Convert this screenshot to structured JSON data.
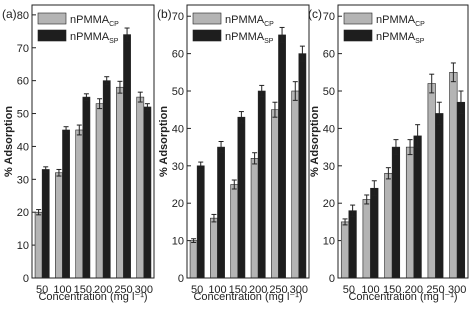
{
  "chart_data": [
    {
      "type": "bar",
      "panel_label": "(a)",
      "y_label": "% Adsorption",
      "x_label": "Concentration (mg l⁻¹)",
      "categories": [
        "50",
        "100",
        "150",
        "200",
        "250",
        "300"
      ],
      "series": [
        {
          "name": "nPMMA",
          "subscript": "CP",
          "color": "#b4b4b4",
          "values": [
            20,
            32,
            45,
            53,
            58,
            55
          ],
          "errors": [
            0.8,
            1,
            1.5,
            1.5,
            1.8,
            1.5
          ]
        },
        {
          "name": "nPMMA",
          "subscript": "SP",
          "color": "#1e1e1e",
          "values": [
            33,
            45,
            55,
            60,
            74,
            52
          ],
          "errors": [
            0.8,
            1,
            1,
            1.2,
            2,
            1
          ]
        }
      ],
      "ylim": [
        0,
        83
      ],
      "yticks": [
        0,
        10,
        20,
        30,
        40,
        50,
        60,
        70,
        80
      ]
    },
    {
      "type": "bar",
      "panel_label": "(b)",
      "y_label": "% Adsorption",
      "x_label": "Concentration (mg l⁻¹)",
      "categories": [
        "50",
        "100",
        "150",
        "200",
        "250",
        "300"
      ],
      "series": [
        {
          "name": "nPMMA",
          "subscript": "CP",
          "color": "#b4b4b4",
          "values": [
            10,
            16,
            25,
            32,
            45,
            50
          ],
          "errors": [
            0.5,
            1,
            1.2,
            1.5,
            2,
            2.5
          ]
        },
        {
          "name": "nPMMA",
          "subscript": "SP",
          "color": "#1e1e1e",
          "values": [
            30,
            35,
            43,
            50,
            65,
            60
          ],
          "errors": [
            1,
            1.5,
            1.5,
            1.5,
            2,
            2
          ]
        }
      ],
      "ylim": [
        0,
        73
      ],
      "yticks": [
        0,
        10,
        20,
        30,
        40,
        50,
        60,
        70
      ]
    },
    {
      "type": "bar",
      "panel_label": "(c)",
      "y_label": "% Adsorption",
      "x_label": "Concentration (mg l⁻¹)",
      "categories": [
        "50",
        "100",
        "150",
        "200",
        "250",
        "300"
      ],
      "series": [
        {
          "name": "nPMMA",
          "subscript": "CP",
          "color": "#b4b4b4",
          "values": [
            15,
            21,
            28,
            35,
            52,
            55
          ],
          "errors": [
            0.8,
            1.2,
            1.5,
            2,
            2.5,
            2.5
          ]
        },
        {
          "name": "nPMMA",
          "subscript": "SP",
          "color": "#1e1e1e",
          "values": [
            18,
            24,
            35,
            38,
            44,
            47
          ],
          "errors": [
            1.5,
            2,
            2,
            3,
            3,
            3
          ]
        }
      ],
      "ylim": [
        0,
        73
      ],
      "yticks": [
        0,
        10,
        20,
        30,
        40,
        50,
        60,
        70
      ]
    }
  ]
}
